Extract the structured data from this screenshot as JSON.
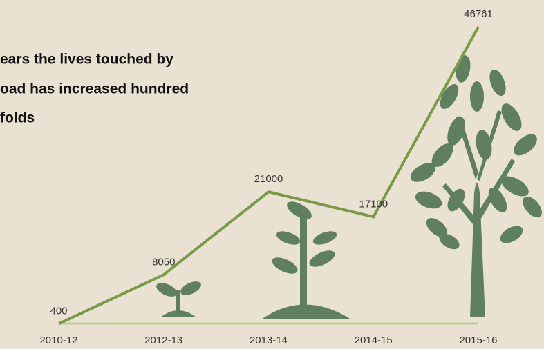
{
  "chart_data": {
    "type": "line",
    "title": [
      "ears the lives touched by",
      "oad has increased hundred",
      "folds"
    ],
    "categories": [
      "2010-12",
      "2012-13",
      "2013-14",
      "2014-15",
      "2015-16"
    ],
    "values": [
      400,
      8050,
      21000,
      17100,
      46761
    ],
    "color": "#7a9a48",
    "ylim": [
      0,
      50000
    ]
  }
}
